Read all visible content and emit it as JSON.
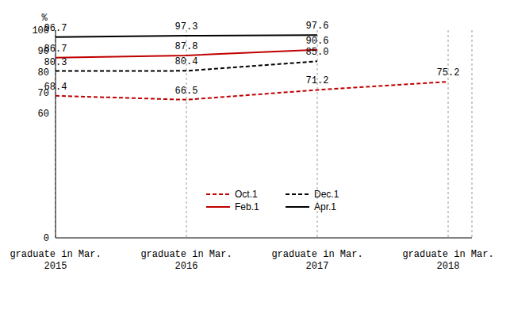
{
  "chart_data": {
    "type": "line",
    "y_label": "%",
    "categories": [
      "graduate in Mar.\n2015",
      "graduate in Mar.\n2016",
      "graduate in Mar.\n2017",
      "graduate in Mar.\n2018"
    ],
    "series": [
      {
        "name": "Oct.1",
        "color": "#c00000",
        "line_style": "dashed",
        "values": [
          68.4,
          66.5,
          71.2,
          75.2
        ],
        "value_labels": [
          "68.4",
          "66.5",
          "71.2",
          "75.2"
        ]
      },
      {
        "name": "Dec.1",
        "color": "#000000",
        "line_style": "dashed",
        "values": [
          80.3,
          80.4,
          85.0,
          null
        ],
        "value_labels": [
          "80.3",
          "80.4",
          "85.0",
          null
        ]
      },
      {
        "name": "Feb.1",
        "color": "#c00000",
        "line_style": "solid",
        "values": [
          86.7,
          87.8,
          90.6,
          null
        ],
        "value_labels": [
          "86.7",
          "87.8",
          "90.6",
          null
        ]
      },
      {
        "name": "Apr.1",
        "color": "#000000",
        "line_style": "solid",
        "values": [
          96.7,
          97.3,
          97.6,
          null
        ],
        "value_labels": [
          "96.7",
          "97.3",
          "97.6",
          null
        ]
      }
    ],
    "ylim": [
      0,
      100
    ],
    "yticks": [
      0,
      60,
      70,
      80,
      90,
      100
    ],
    "grid": "x",
    "data_labels": true,
    "legend": "bottom"
  }
}
